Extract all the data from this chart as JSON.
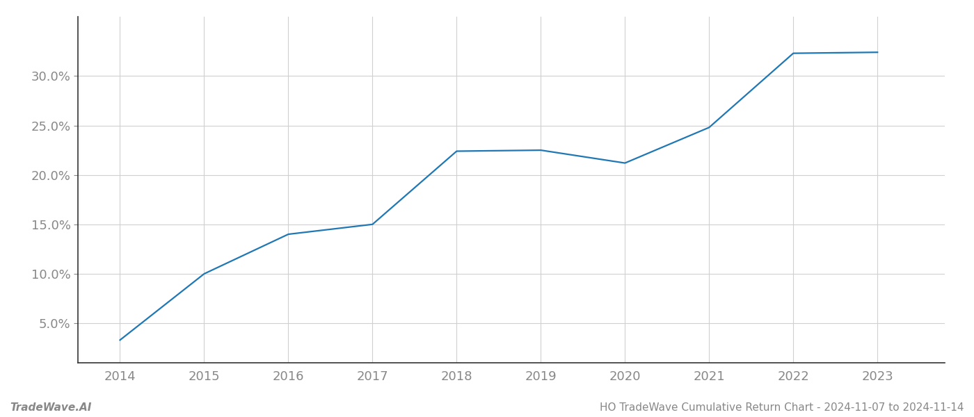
{
  "x_years": [
    2014,
    2015,
    2016,
    2017,
    2018,
    2019,
    2020,
    2021,
    2022,
    2023
  ],
  "y_values": [
    3.3,
    10.0,
    14.0,
    15.0,
    22.4,
    22.5,
    21.2,
    24.8,
    32.3,
    32.4
  ],
  "line_color": "#1f77b4",
  "line_width": 1.6,
  "background_color": "#ffffff",
  "grid_color": "#d0d0d0",
  "ylabel_values": [
    5.0,
    10.0,
    15.0,
    20.0,
    25.0,
    30.0
  ],
  "xlim": [
    2013.5,
    2023.8
  ],
  "ylim": [
    1.0,
    36.0
  ],
  "footer_left": "TradeWave.AI",
  "footer_right": "HO TradeWave Cumulative Return Chart - 2024-11-07 to 2024-11-14",
  "footer_color": "#888888",
  "tick_color": "#888888",
  "spine_color": "#333333",
  "tick_fontsize": 13,
  "footer_fontsize": 11
}
